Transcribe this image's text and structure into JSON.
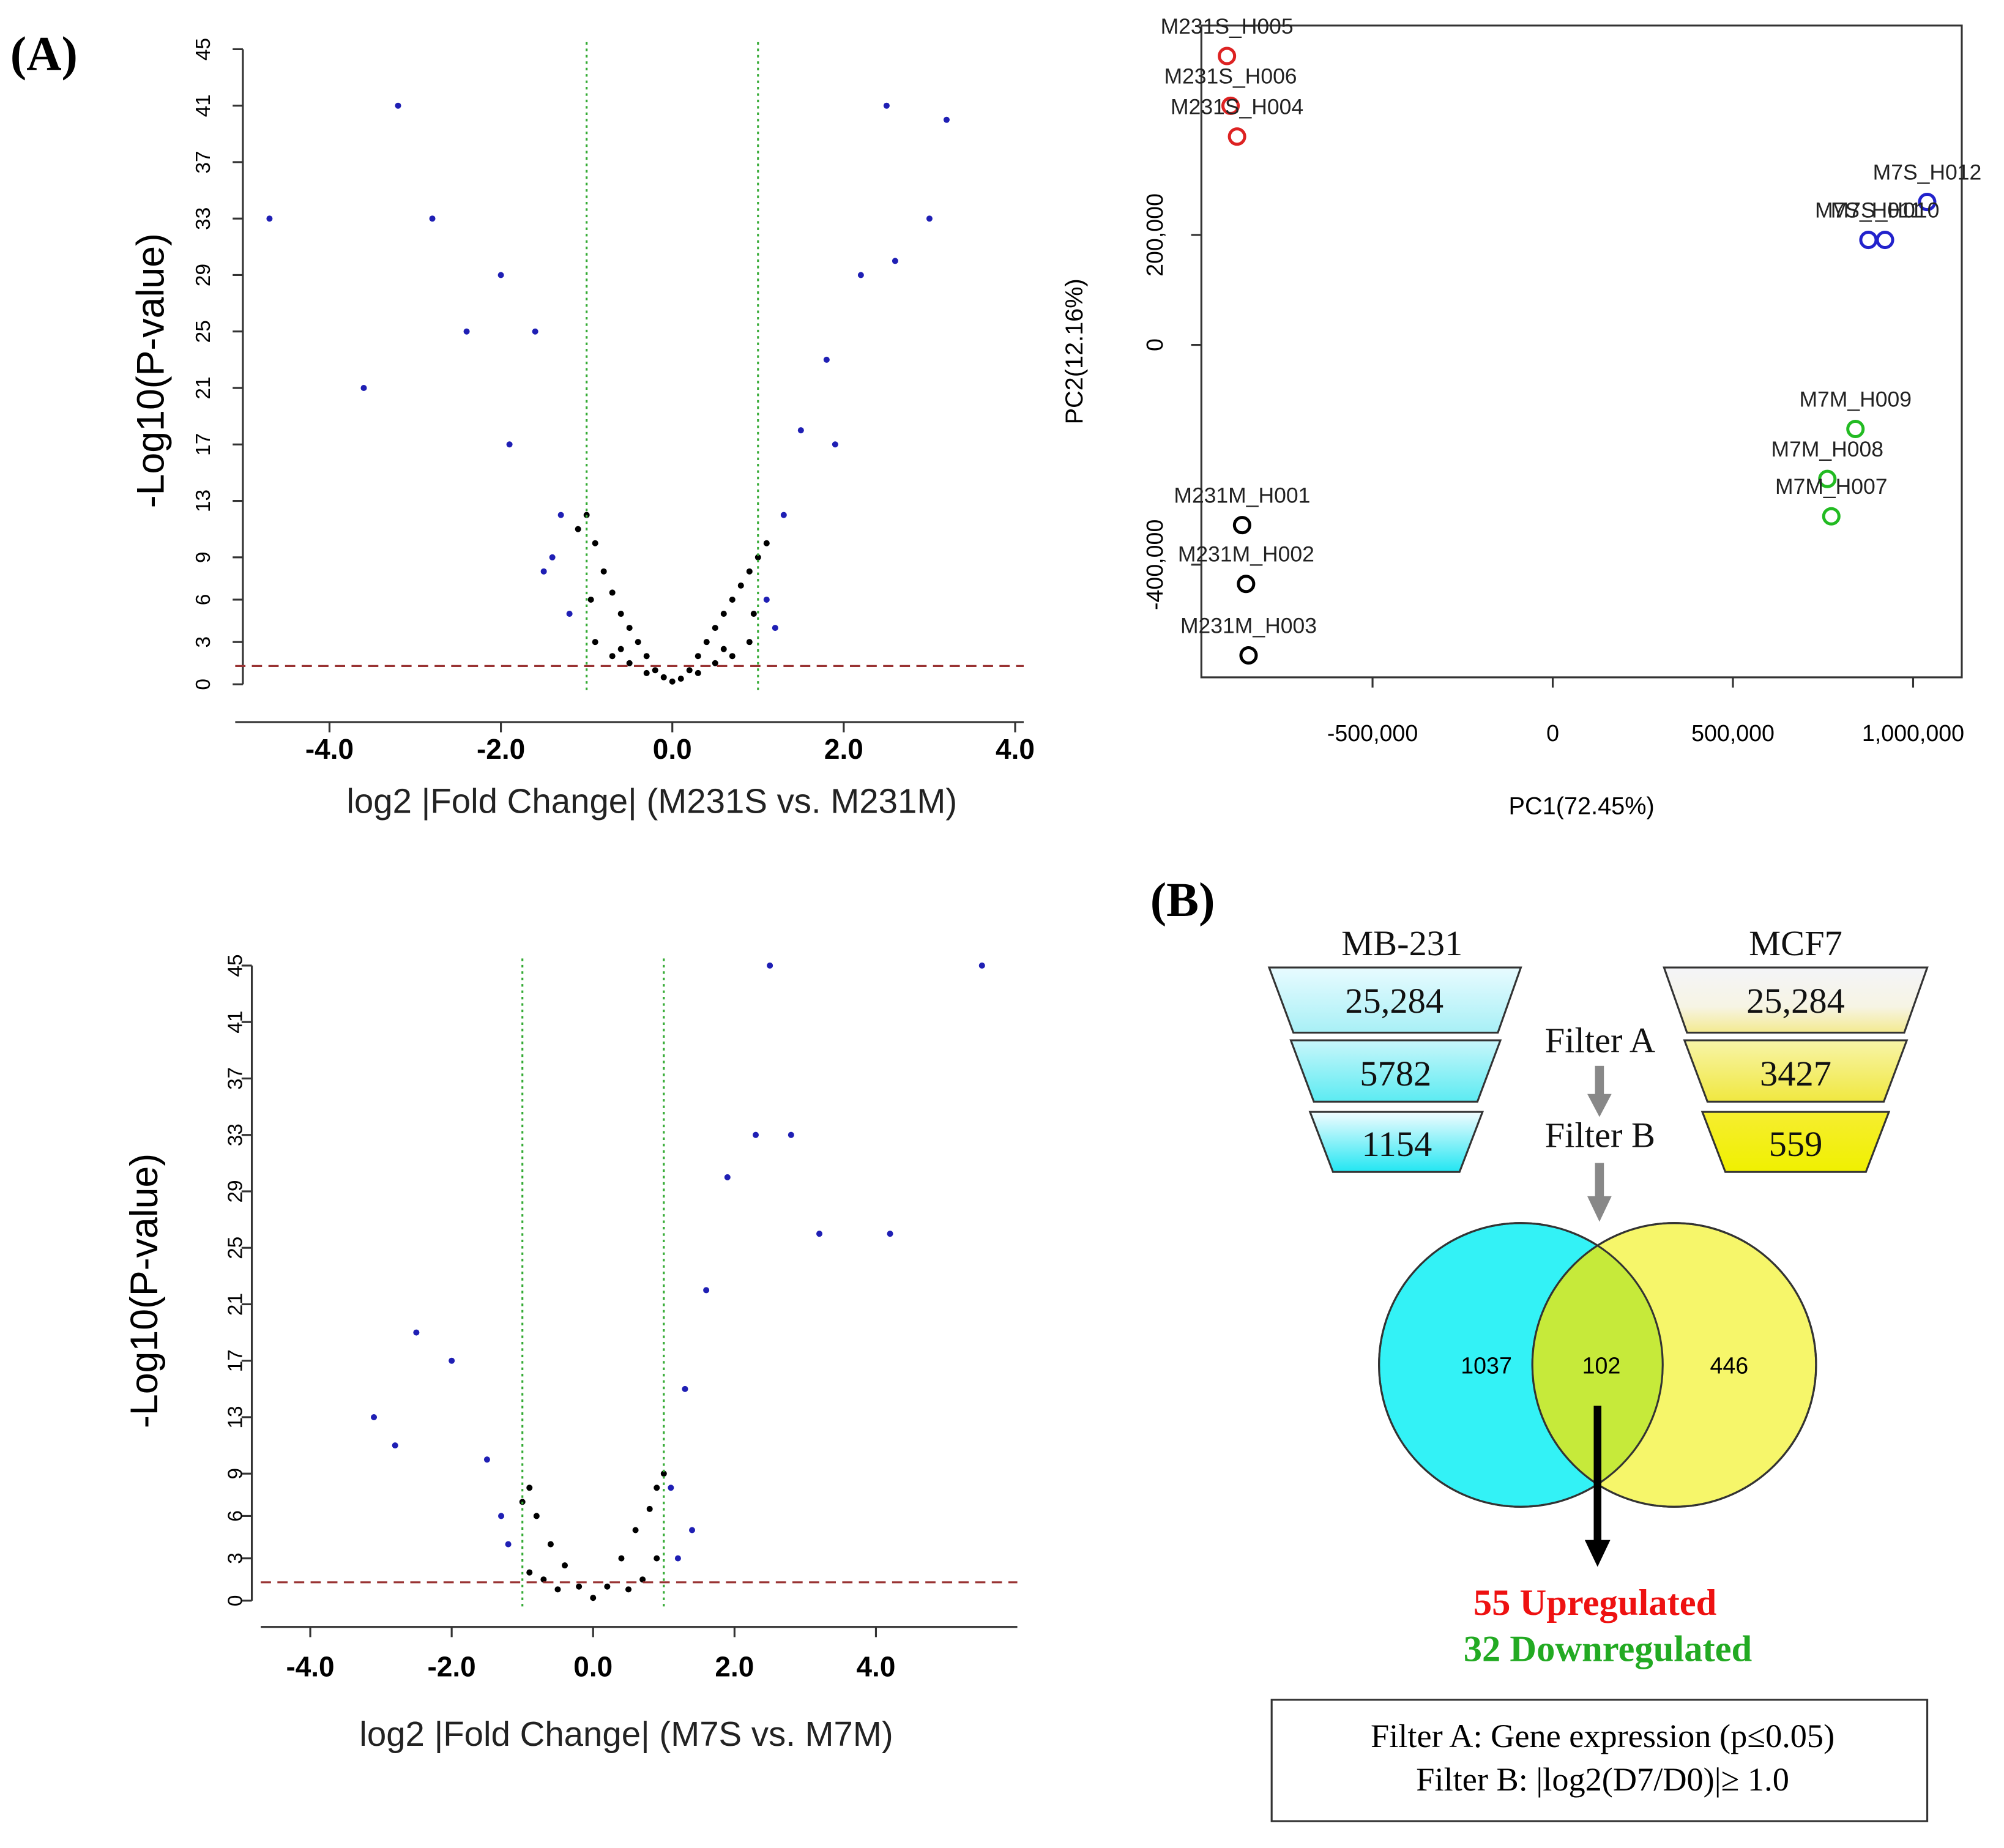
{
  "panel_labels": [
    "(A)",
    "(B)"
  ],
  "chart_data": [
    {
      "type": "scatter",
      "ylabel": "-Log10(P-value)",
      "xlabel": "log2 |Fold Change| (M231S vs. M231M)",
      "xlim": [
        -5.1,
        4.1
      ],
      "ylim": [
        -0.5,
        45.5
      ],
      "xticks": [
        {
          "value": -4,
          "label": "-4.0"
        },
        {
          "value": -2,
          "label": "-2.0"
        },
        {
          "value": 0,
          "label": "0.0"
        },
        {
          "value": 2,
          "label": "2.0"
        },
        {
          "value": 4,
          "label": "4.0"
        }
      ],
      "yticks": [
        0,
        3,
        6,
        9,
        13,
        17,
        21,
        25,
        29,
        33,
        37,
        41,
        45
      ],
      "vlines": [
        -1,
        1
      ],
      "vline_color": "#33aa33",
      "hline": 1.3,
      "hline_color": "#993333",
      "series": [
        {
          "color": "#000000",
          "x": [
            -1.1,
            -1.0,
            -0.9,
            -0.8,
            -0.7,
            -0.6,
            -0.5,
            -0.4,
            -0.3,
            -0.2,
            -0.1,
            0,
            0.1,
            0.2,
            0.3,
            0.4,
            0.5,
            0.6,
            0.7,
            0.8,
            0.9,
            1.0,
            1.1,
            -0.9,
            -0.7,
            -0.5,
            -0.3,
            0.3,
            0.5,
            0.7,
            0.9,
            -0.95,
            -0.6,
            0.6,
            0.95
          ],
          "values": [
            11,
            12,
            10,
            8,
            6.5,
            5,
            4,
            3,
            2,
            1,
            0.5,
            0.2,
            0.4,
            1,
            2,
            3,
            4,
            5,
            6,
            7,
            8,
            9,
            10,
            3,
            2,
            1.5,
            0.8,
            0.8,
            1.5,
            2,
            3,
            6,
            2.5,
            2.5,
            5
          ]
        },
        {
          "color": "#1f1fb4",
          "x": [
            -1.5,
            -1.3,
            -1.2,
            -1.6,
            -2.0,
            -2.4,
            -2.8,
            -3.2,
            -3.6,
            -4.7,
            -1.9,
            -1.4,
            1.1,
            1.3,
            1.5,
            1.8,
            2.2,
            2.6,
            3.0,
            3.2,
            2.5,
            1.9,
            1.2
          ],
          "values": [
            8,
            12,
            5,
            25,
            29,
            25,
            33,
            41,
            21,
            33,
            17,
            9,
            6,
            12,
            18,
            23,
            29,
            30,
            33,
            40,
            41,
            17,
            4
          ]
        }
      ]
    },
    {
      "type": "scatter",
      "ylabel": "-Log10(P-value)",
      "xlabel": "log2 |Fold Change| (M7S vs. M7M)",
      "xlim": [
        -4.7,
        6.0
      ],
      "ylim": [
        -0.5,
        45.5
      ],
      "xticks": [
        {
          "value": -4,
          "label": "-4.0"
        },
        {
          "value": -2,
          "label": "-2.0"
        },
        {
          "value": 0,
          "label": "0.0"
        },
        {
          "value": 2,
          "label": "2.0"
        },
        {
          "value": 4,
          "label": "4.0"
        }
      ],
      "yticks": [
        0,
        3,
        6,
        9,
        13,
        17,
        21,
        25,
        29,
        33,
        37,
        41,
        45
      ],
      "vlines": [
        -1,
        1
      ],
      "vline_color": "#33aa33",
      "hline": 1.3,
      "hline_color": "#993333",
      "series": [
        {
          "color": "#000000",
          "x": [
            -1.0,
            -0.9,
            -0.8,
            -0.6,
            -0.4,
            -0.2,
            0,
            0.2,
            0.4,
            0.6,
            0.8,
            0.9,
            1.0,
            -0.7,
            -0.5,
            0.5,
            0.7,
            -0.9,
            0.9
          ],
          "values": [
            7,
            8,
            6,
            4,
            2.5,
            1,
            0.2,
            1,
            3,
            5,
            6.5,
            8,
            9,
            1.5,
            0.8,
            0.8,
            1.5,
            2,
            3
          ]
        },
        {
          "color": "#1f1fb4",
          "x": [
            -1.2,
            -1.5,
            -2.0,
            -2.5,
            -2.8,
            -3.1,
            -1.3,
            1.1,
            1.3,
            1.6,
            1.9,
            2.3,
            2.5,
            2.8,
            3.2,
            4.2,
            5.5,
            1.4,
            1.2
          ],
          "values": [
            4,
            10,
            17,
            19,
            11,
            13,
            6,
            8,
            15,
            22,
            30,
            33,
            45,
            33,
            26,
            26,
            45,
            5,
            3
          ]
        }
      ]
    },
    {
      "type": "pca",
      "xlabel": "PC1(72.45%)",
      "ylabel": "PC2(12.16%)",
      "xlim": [
        -975000,
        1135000
      ],
      "ylim": [
        -605000,
        581000
      ],
      "xticks": [
        {
          "value": -500000,
          "label": "-500,000"
        },
        0,
        {
          "value": 500000,
          "label": "500,000"
        },
        {
          "value": 1000000,
          "label": "1,000,000"
        }
      ],
      "yticks": [
        {
          "value": -400000,
          "label": "-400,000"
        },
        0,
        {
          "value": 200000,
          "label": "200,000"
        }
      ],
      "series": [
        {
          "color": "#dd2222",
          "labels": [
            "M231S_H005",
            "M231S_H006",
            "M231S_H004"
          ],
          "x": [
            -904000,
            -894000,
            -876000
          ],
          "values": [
            525600,
            435000,
            379000
          ]
        },
        {
          "color": "#2222cc",
          "labels": [
            "M7S_H012",
            "M7S_H010",
            "M7S_H011"
          ],
          "x": [
            1039000,
            922000,
            876000
          ],
          "values": [
            260000,
            191000,
            191000
          ]
        },
        {
          "color": "#22bb22",
          "labels": [
            "M7M_H009",
            "M7M_H008",
            "M7M_H007"
          ],
          "x": [
            840000,
            762000,
            773000
          ],
          "values": [
            -153000,
            -244000,
            -312000
          ]
        },
        {
          "color": "#000000",
          "labels": [
            "M231M_H001",
            "M231M_H002",
            "M231M_H003"
          ],
          "x": [
            -862000,
            -851000,
            -844000
          ],
          "values": [
            -328000,
            -435000,
            -565000
          ]
        }
      ]
    }
  ],
  "funnel": {
    "filter_a": "Filter A",
    "filter_b": "Filter B",
    "columns": [
      {
        "name": "MB-231",
        "levels": [
          "25,284",
          "5782",
          "1154"
        ]
      },
      {
        "name": "MCF7",
        "levels": [
          "25,284",
          "3427",
          "559"
        ]
      }
    ]
  },
  "venn": {
    "regions": [
      "1037",
      "102",
      "446"
    ]
  },
  "result": {
    "up": "55 Upregulated",
    "down": "32 Downregulated"
  },
  "legend": [
    "Filter A: Gene expression (p≤0.05)",
    "Filter B: |log2(D7/D0)|≥ 1.0"
  ]
}
